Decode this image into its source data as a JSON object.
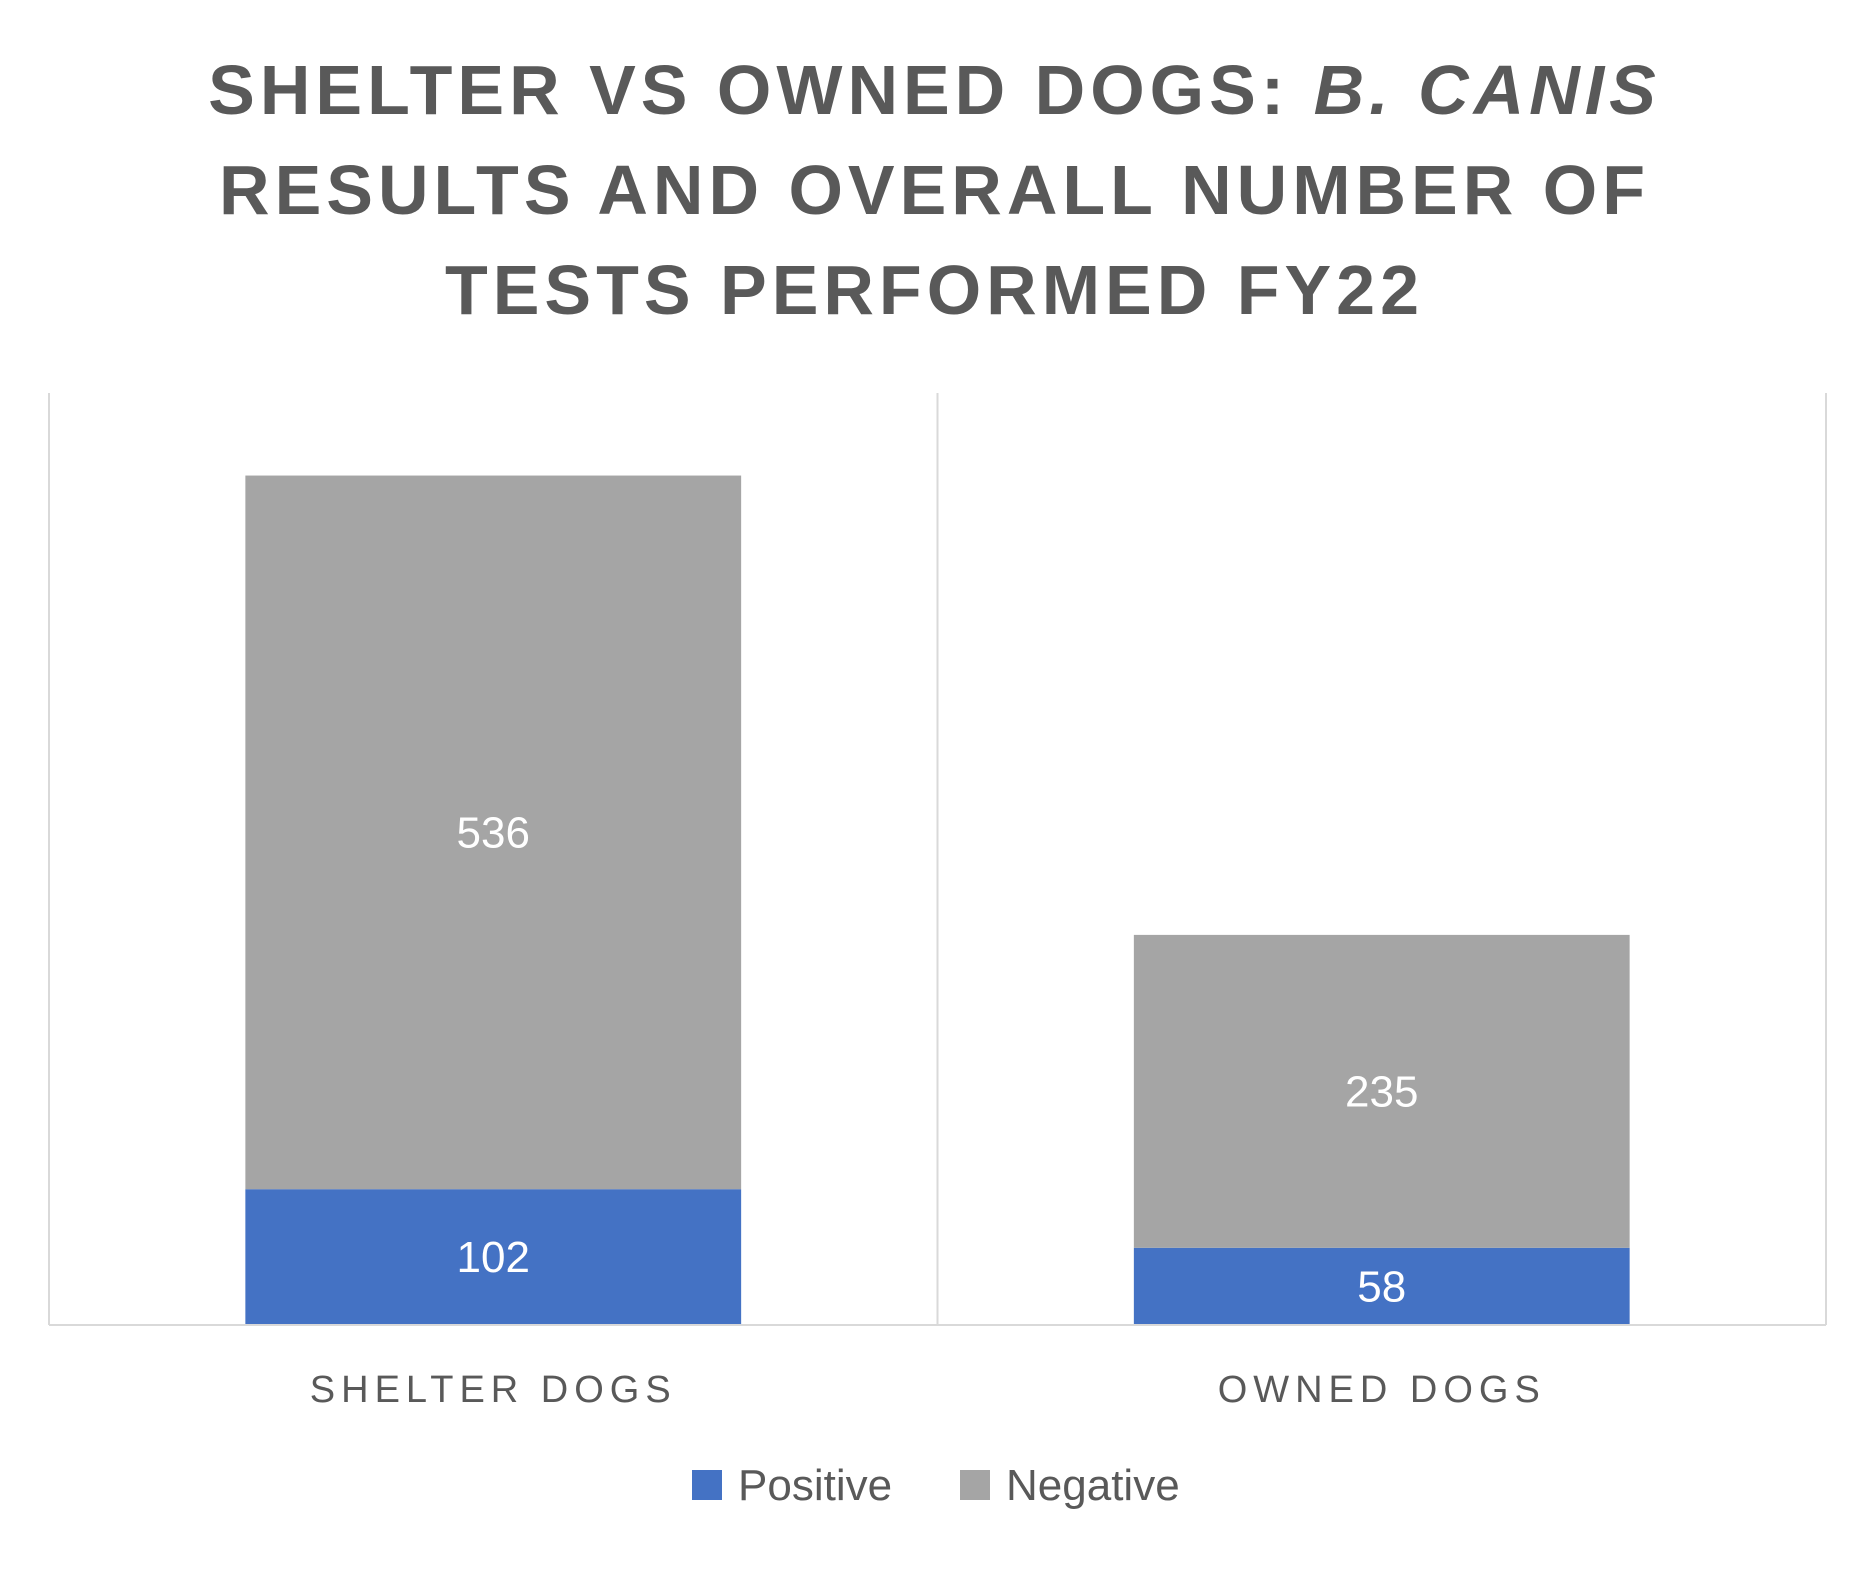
{
  "chart_data": {
    "type": "bar",
    "stacked": true,
    "title_lines": [
      "SHELTER VS OWNED DOGS: B. CANIS",
      "RESULTS AND OVERALL NUMBER OF",
      "TESTS PERFORMED FY22"
    ],
    "title_italic_part": "B. CANIS",
    "categories": [
      "SHELTER DOGS",
      "OWNED DOGS"
    ],
    "series": [
      {
        "name": "Positive",
        "values": [
          102,
          58
        ],
        "color": "#4472C4"
      },
      {
        "name": "Negative",
        "values": [
          536,
          235
        ],
        "color": "#A5A5A5"
      }
    ],
    "xlabel": "",
    "ylabel": "",
    "ylim": [
      0,
      700
    ],
    "grid": false,
    "legend": "bottom"
  }
}
